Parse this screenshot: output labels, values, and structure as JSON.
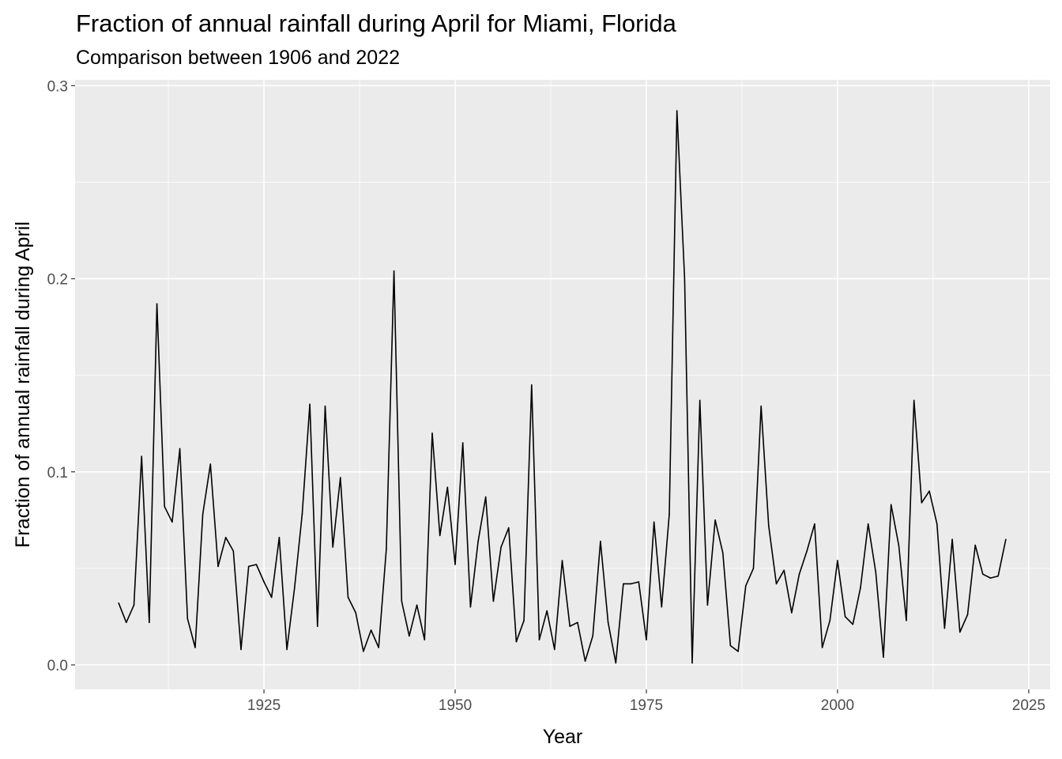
{
  "chart_data": {
    "type": "line",
    "title": "Fraction of annual rainfall during April for Miami, Florida",
    "subtitle": "Comparison between 1906 and 2022",
    "xlabel": "Year",
    "ylabel": "Fraction of annual rainfall during April",
    "xlim": [
      1900.3,
      2027.8
    ],
    "ylim": [
      -0.0127,
      0.303
    ],
    "xticks": [
      1925,
      1950,
      1975,
      2000,
      2025
    ],
    "xtick_labels": [
      "1925",
      "1950",
      "1975",
      "2000",
      "2025"
    ],
    "yticks": [
      0.0,
      0.1,
      0.2,
      0.3
    ],
    "ytick_labels": [
      "0.0",
      "0.1",
      "0.2",
      "0.3"
    ],
    "grid": true,
    "line_color": "#000000",
    "panel_color": "#ebebeb",
    "x": [
      1906,
      1907,
      1908,
      1909,
      1910,
      1911,
      1912,
      1913,
      1914,
      1915,
      1916,
      1917,
      1918,
      1919,
      1920,
      1921,
      1922,
      1923,
      1924,
      1925,
      1926,
      1927,
      1928,
      1929,
      1930,
      1931,
      1932,
      1933,
      1934,
      1935,
      1936,
      1937,
      1938,
      1939,
      1940,
      1941,
      1942,
      1943,
      1944,
      1945,
      1946,
      1947,
      1948,
      1949,
      1950,
      1951,
      1952,
      1953,
      1954,
      1955,
      1956,
      1957,
      1958,
      1959,
      1960,
      1961,
      1962,
      1963,
      1964,
      1965,
      1966,
      1967,
      1968,
      1969,
      1970,
      1971,
      1972,
      1973,
      1974,
      1975,
      1976,
      1977,
      1978,
      1979,
      1980,
      1981,
      1982,
      1983,
      1984,
      1985,
      1986,
      1987,
      1988,
      1989,
      1990,
      1991,
      1992,
      1993,
      1994,
      1995,
      1996,
      1997,
      1998,
      1999,
      2000,
      2001,
      2002,
      2003,
      2004,
      2005,
      2006,
      2007,
      2008,
      2009,
      2010,
      2011,
      2012,
      2013,
      2014,
      2015,
      2016,
      2017,
      2018,
      2019,
      2020,
      2021,
      2022
    ],
    "y": [
      0.032,
      0.022,
      0.031,
      0.108,
      0.022,
      0.187,
      0.082,
      0.074,
      0.112,
      0.024,
      0.009,
      0.078,
      0.104,
      0.051,
      0.066,
      0.059,
      0.008,
      0.051,
      0.052,
      0.043,
      0.035,
      0.066,
      0.008,
      0.04,
      0.078,
      0.135,
      0.02,
      0.134,
      0.061,
      0.097,
      0.035,
      0.027,
      0.007,
      0.018,
      0.009,
      0.06,
      0.204,
      0.033,
      0.015,
      0.031,
      0.013,
      0.12,
      0.067,
      0.092,
      0.052,
      0.115,
      0.03,
      0.064,
      0.087,
      0.033,
      0.061,
      0.071,
      0.012,
      0.023,
      0.145,
      0.013,
      0.028,
      0.008,
      0.054,
      0.02,
      0.022,
      0.002,
      0.015,
      0.064,
      0.022,
      0.001,
      0.042,
      0.042,
      0.043,
      0.013,
      0.074,
      0.03,
      0.078,
      0.287,
      0.2,
      0.001,
      0.137,
      0.031,
      0.075,
      0.058,
      0.01,
      0.007,
      0.041,
      0.05,
      0.134,
      0.072,
      0.042,
      0.049,
      0.027,
      0.047,
      0.059,
      0.073,
      0.009,
      0.023,
      0.054,
      0.025,
      0.021,
      0.04,
      0.073,
      0.048,
      0.004,
      0.083,
      0.062,
      0.023,
      0.137,
      0.084,
      0.09,
      0.073,
      0.019,
      0.065,
      0.017,
      0.026,
      0.062,
      0.047,
      0.045,
      0.046,
      0.065
    ]
  }
}
